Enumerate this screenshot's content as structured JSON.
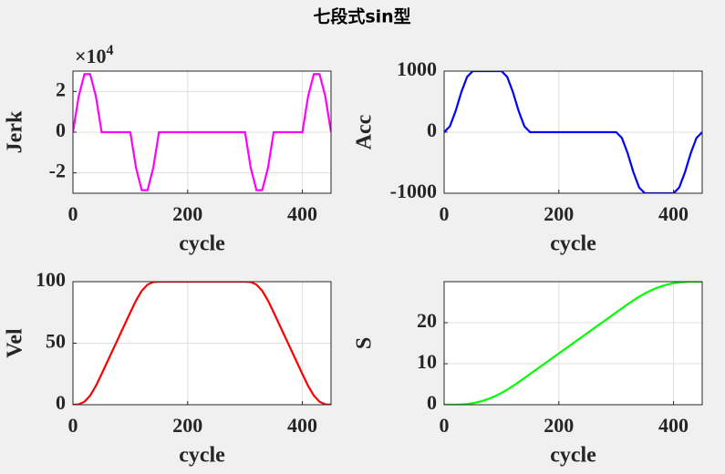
{
  "title": "七段式sin型",
  "chart_data": [
    {
      "type": "line",
      "ylabel": "Jerk",
      "xlabel": "cycle",
      "y_exponent": {
        "base": "×10",
        "power": "4"
      },
      "x": [
        0,
        10,
        20,
        30,
        40,
        50,
        60,
        70,
        80,
        90,
        100,
        110,
        120,
        130,
        140,
        150,
        160,
        170,
        180,
        190,
        200,
        210,
        220,
        230,
        240,
        250,
        260,
        270,
        280,
        290,
        300,
        310,
        320,
        330,
        340,
        350,
        360,
        370,
        380,
        390,
        400,
        410,
        420,
        430,
        440,
        450
      ],
      "series": [
        {
          "color": "#ff00ff",
          "values": [
            0,
            1.76,
            2.85,
            2.85,
            1.76,
            0,
            0,
            0,
            0,
            0,
            0,
            -1.76,
            -2.85,
            -2.85,
            -1.76,
            0,
            0,
            0,
            0,
            0,
            0,
            0,
            0,
            0,
            0,
            0,
            0,
            0,
            0,
            0,
            0,
            -1.76,
            -2.85,
            -2.85,
            -1.76,
            0,
            0,
            0,
            0,
            0,
            0,
            1.76,
            2.85,
            2.85,
            1.76,
            0
          ]
        }
      ],
      "xlim": [
        0,
        450
      ],
      "xticks": [
        0,
        200,
        400
      ],
      "ylim": [
        -3,
        3
      ],
      "yticks": [
        -2,
        0,
        2
      ],
      "grid": true
    },
    {
      "type": "line",
      "ylabel": "Acc",
      "xlabel": "cycle",
      "x": [
        0,
        10,
        20,
        30,
        40,
        50,
        60,
        70,
        80,
        90,
        100,
        110,
        120,
        130,
        140,
        150,
        160,
        170,
        180,
        190,
        200,
        210,
        220,
        230,
        240,
        250,
        260,
        270,
        280,
        290,
        300,
        310,
        320,
        330,
        340,
        350,
        360,
        370,
        380,
        390,
        400,
        410,
        420,
        430,
        440,
        450
      ],
      "series": [
        {
          "color": "#0000ff",
          "values": [
            0,
            95,
            345,
            655,
            905,
            1000,
            1000,
            1000,
            1000,
            1000,
            1000,
            905,
            655,
            345,
            95,
            0,
            0,
            0,
            0,
            0,
            0,
            0,
            0,
            0,
            0,
            0,
            0,
            0,
            0,
            0,
            0,
            -95,
            -345,
            -655,
            -905,
            -1000,
            -1000,
            -1000,
            -1000,
            -1000,
            -1000,
            -905,
            -655,
            -345,
            -95,
            0
          ]
        }
      ],
      "xlim": [
        0,
        450
      ],
      "xticks": [
        0,
        200,
        400
      ],
      "ylim": [
        -1000,
        1000
      ],
      "yticks": [
        -1000,
        0,
        1000
      ],
      "grid": true
    },
    {
      "type": "line",
      "ylabel": "Vel",
      "xlabel": "cycle",
      "x": [
        0,
        10,
        20,
        30,
        40,
        50,
        60,
        70,
        80,
        90,
        100,
        110,
        120,
        130,
        140,
        150,
        160,
        170,
        180,
        190,
        200,
        210,
        220,
        230,
        240,
        250,
        260,
        270,
        280,
        290,
        300,
        310,
        320,
        330,
        340,
        350,
        360,
        370,
        380,
        390,
        400,
        410,
        420,
        430,
        440,
        450
      ],
      "series": [
        {
          "color": "#ff0000",
          "values": [
            0,
            0.32,
            2.43,
            7.43,
            15.32,
            25,
            35,
            45,
            55,
            65,
            75,
            84.68,
            92.57,
            97.57,
            99.68,
            100,
            100,
            100,
            100,
            100,
            100,
            100,
            100,
            100,
            100,
            100,
            100,
            100,
            100,
            100,
            100,
            99.68,
            97.57,
            92.57,
            84.68,
            75,
            65,
            55,
            45,
            35,
            25,
            15.32,
            7.43,
            2.43,
            0.32,
            0
          ]
        }
      ],
      "xlim": [
        0,
        450
      ],
      "xticks": [
        0,
        200,
        400
      ],
      "ylim": [
        0,
        100
      ],
      "yticks": [
        0,
        50,
        100
      ],
      "grid": true
    },
    {
      "type": "line",
      "ylabel": "S",
      "xlabel": "cycle",
      "x": [
        0,
        10,
        20,
        30,
        40,
        50,
        60,
        70,
        80,
        90,
        100,
        110,
        120,
        130,
        140,
        150,
        160,
        170,
        180,
        190,
        200,
        210,
        220,
        230,
        240,
        250,
        260,
        270,
        280,
        290,
        300,
        310,
        320,
        330,
        340,
        350,
        360,
        370,
        380,
        390,
        400,
        410,
        420,
        430,
        440,
        450
      ],
      "series": [
        {
          "color": "#00ff00",
          "values": [
            0,
            0,
            0.01,
            0.06,
            0.17,
            0.37,
            0.67,
            1.07,
            1.57,
            2.17,
            2.87,
            3.67,
            4.56,
            5.51,
            6.5,
            7.5,
            8.5,
            9.5,
            10.5,
            11.5,
            12.5,
            13.5,
            14.5,
            15.5,
            16.5,
            17.5,
            18.5,
            19.5,
            20.5,
            21.5,
            22.5,
            23.5,
            24.49,
            25.44,
            26.33,
            27.13,
            27.83,
            28.43,
            28.93,
            29.33,
            29.63,
            29.83,
            29.94,
            29.99,
            30,
            30
          ]
        }
      ],
      "xlim": [
        0,
        450
      ],
      "xticks": [
        0,
        200,
        400
      ],
      "ylim": [
        0,
        30
      ],
      "yticks": [
        0,
        10,
        20
      ],
      "grid": true
    }
  ]
}
